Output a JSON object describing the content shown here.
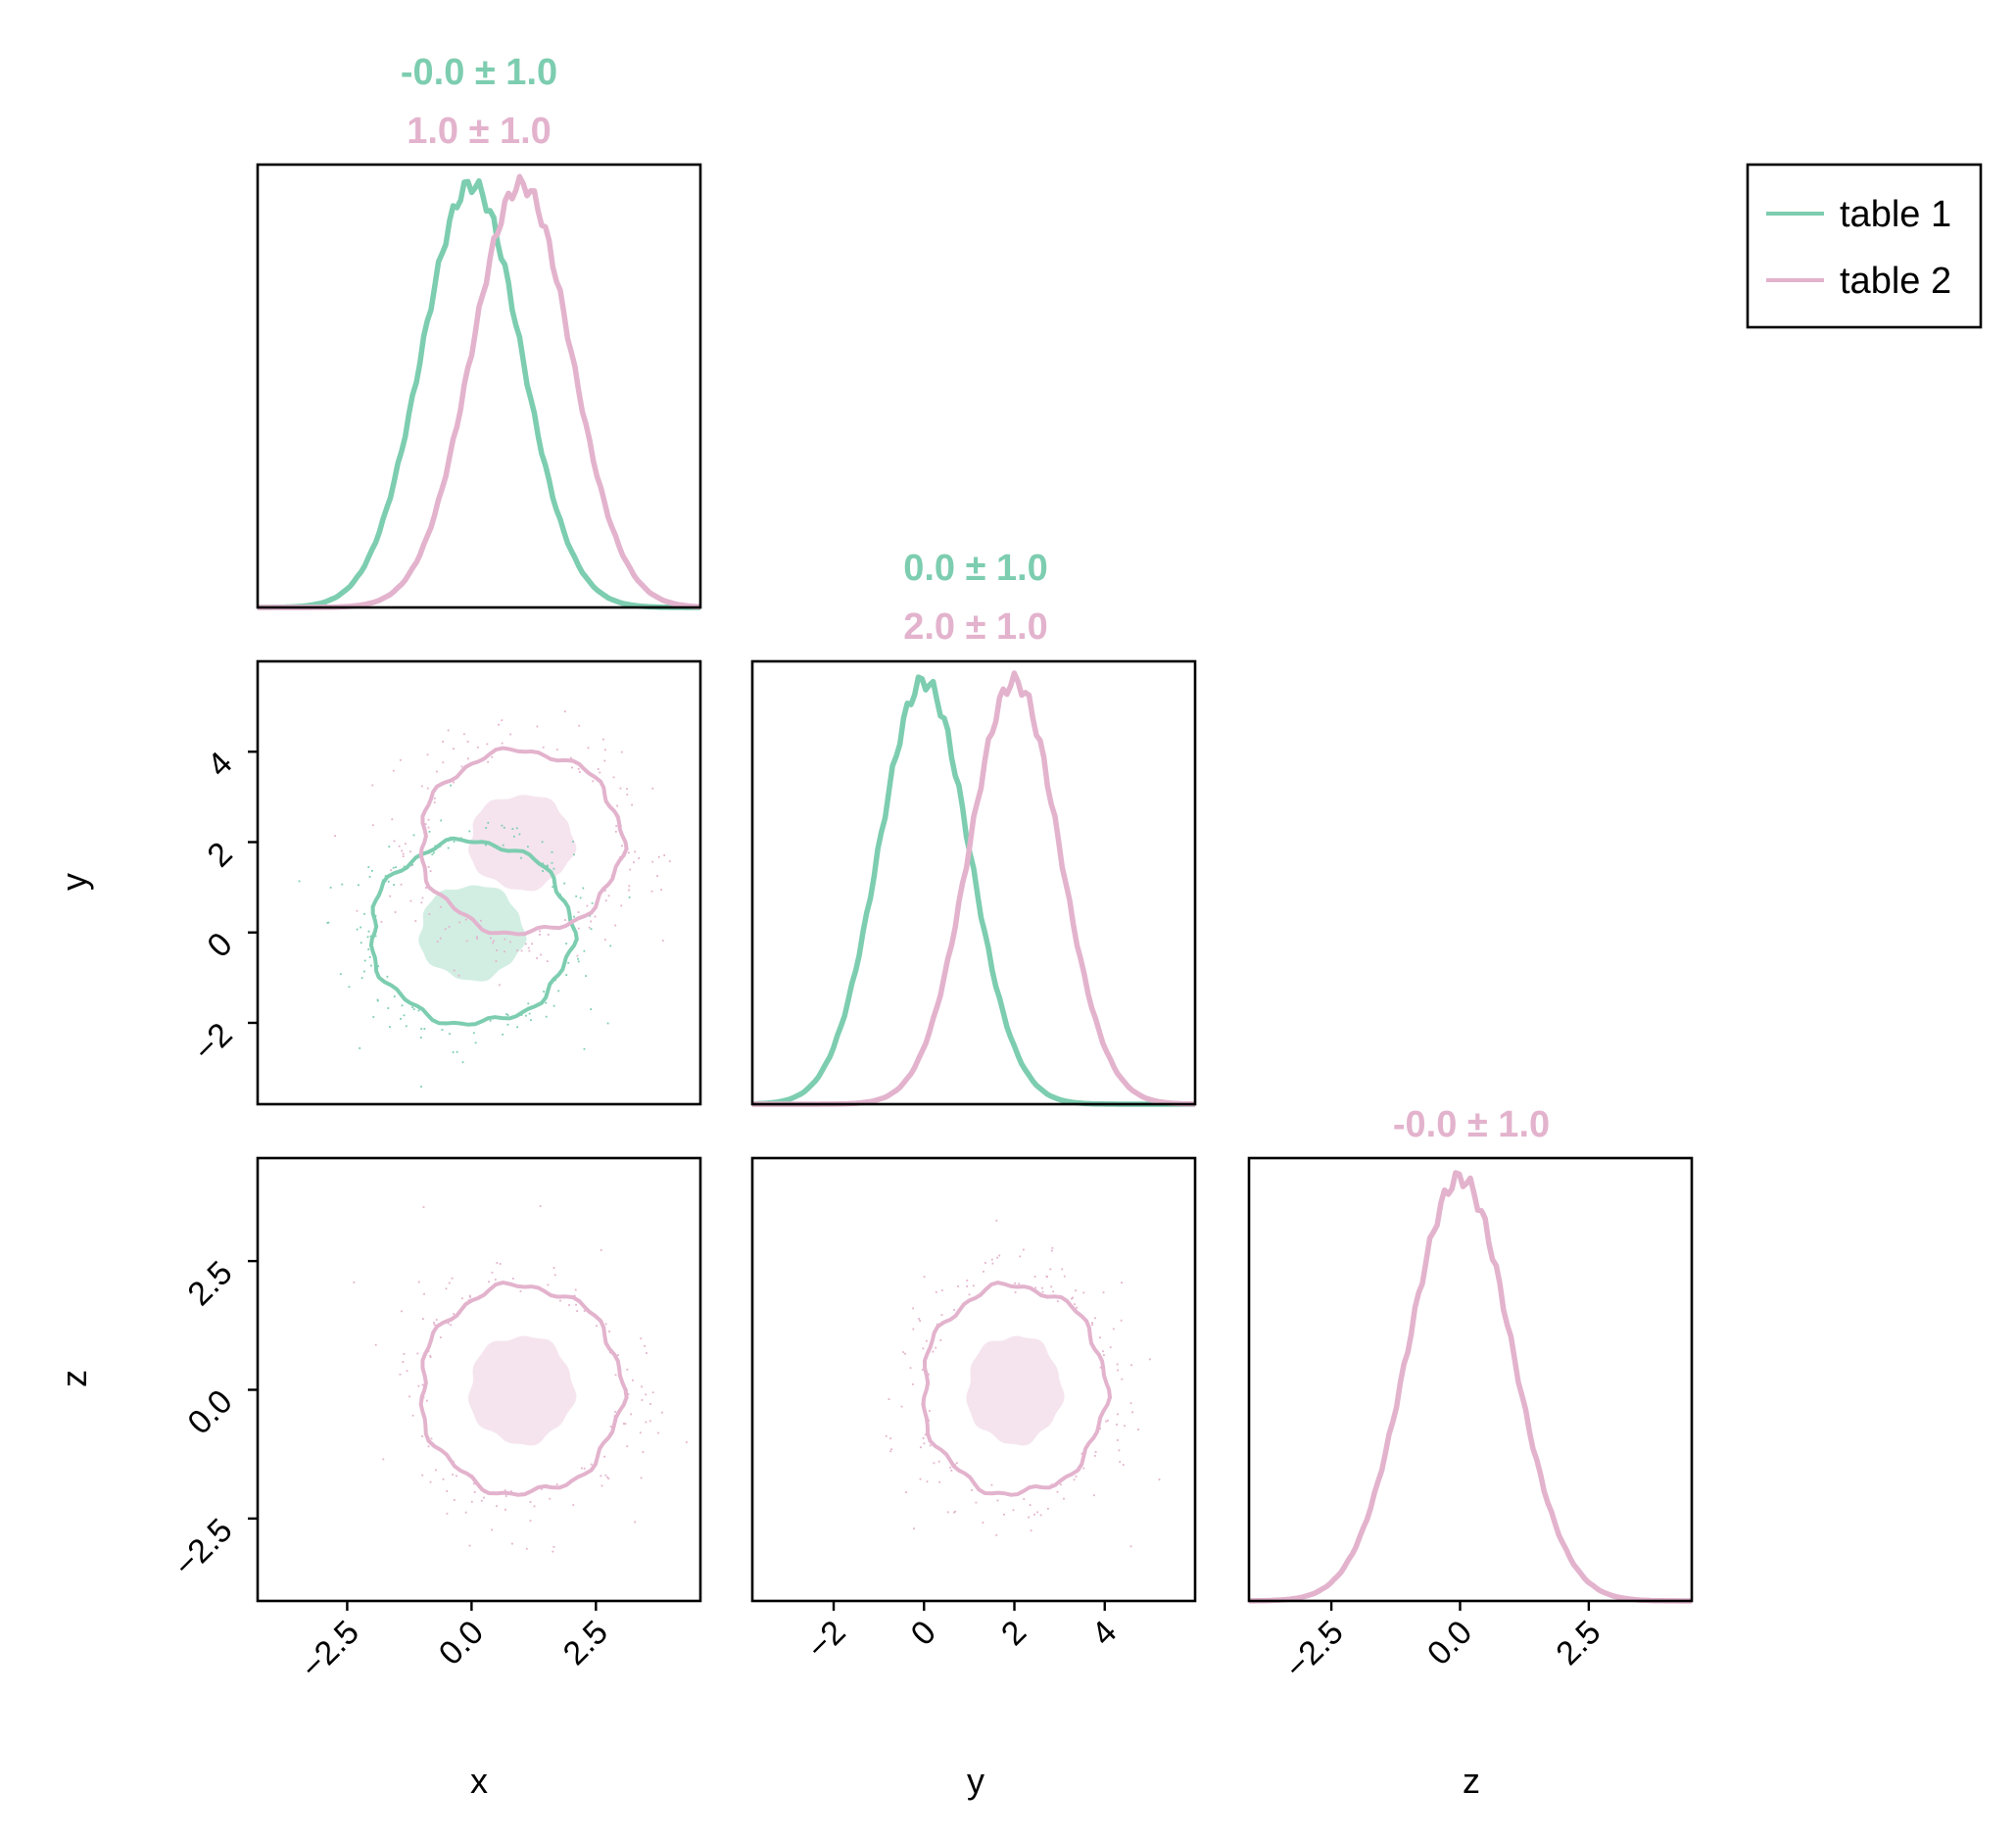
{
  "colors": {
    "table1": "#7dcdb0",
    "table2": "#e3b3cd"
  },
  "legend": {
    "items": [
      {
        "label": "table 1",
        "color": "#7dcdb0"
      },
      {
        "label": "table 2",
        "color": "#e3b3cd"
      }
    ]
  },
  "titles": {
    "x": {
      "t1": "-0.0 ± 1.0",
      "t2": "1.0 ± 1.0"
    },
    "y": {
      "t1": "0.0 ± 1.0",
      "t2": "2.0 ± 1.0"
    },
    "z": {
      "t2": "-0.0 ± 1.0"
    }
  },
  "chart_data": {
    "type": "corner",
    "variables": [
      "x",
      "y",
      "z"
    ],
    "axis_labels": {
      "x": "x",
      "y": "y",
      "z": "z"
    },
    "ranges": {
      "x": [
        -4.3,
        4.6
      ],
      "y": [
        -3.8,
        6.0
      ],
      "z": [
        -4.1,
        4.5
      ]
    },
    "ticks": {
      "x": {
        "values": [
          -2.5,
          0.0,
          2.5
        ],
        "labels": [
          "−2.5",
          "0.0",
          "2.5"
        ]
      },
      "y": {
        "values": [
          -2,
          0,
          2,
          4
        ],
        "labels": [
          "−2",
          "0",
          "2",
          "4"
        ]
      },
      "z": {
        "values": [
          -2.5,
          0.0,
          2.5
        ],
        "labels": [
          "−2.5",
          "0.0",
          "2.5"
        ]
      }
    },
    "series": [
      {
        "name": "table 1",
        "mean": {
          "x": 0.0,
          "y": 0.0
        },
        "std": {
          "x": 1.0,
          "y": 1.0
        },
        "vars": [
          "x",
          "y"
        ]
      },
      {
        "name": "table 2",
        "mean": {
          "x": 1.0,
          "y": 2.0,
          "z": 0.0
        },
        "std": {
          "x": 1.0,
          "y": 1.0,
          "z": 1.0
        },
        "vars": [
          "x",
          "y",
          "z"
        ]
      }
    ],
    "contour_levels_sigma": [
      1,
      2
    ],
    "legend_position": "top-right",
    "grid": false
  }
}
